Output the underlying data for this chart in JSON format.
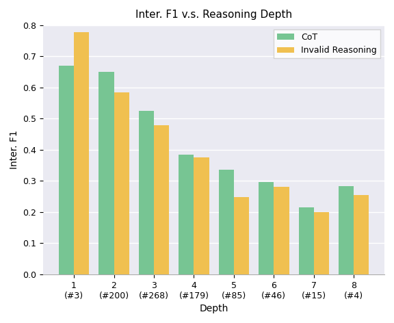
{
  "title": "Inter. F1 v.s. Reasoning Depth",
  "xlabel": "Depth",
  "ylabel": "Inter. F1",
  "categories": [
    "1\n(#3)",
    "2\n(#200)",
    "3\n(#268)",
    "4\n(#179)",
    "5\n(#85)",
    "6\n(#46)",
    "7\n(#15)",
    "8\n(#4)"
  ],
  "cot_values": [
    0.67,
    0.65,
    0.525,
    0.385,
    0.335,
    0.297,
    0.215,
    0.283
  ],
  "invalid_values": [
    0.778,
    0.585,
    0.48,
    0.375,
    0.248,
    0.28,
    0.2,
    0.255
  ],
  "cot_color": "#77C593",
  "invalid_color": "#F0C050",
  "legend_labels": [
    "CoT",
    "Invalid Reasoning"
  ],
  "ylim": [
    0.0,
    0.8
  ],
  "yticks": [
    0.0,
    0.1,
    0.2,
    0.3,
    0.4,
    0.5,
    0.6,
    0.7,
    0.8
  ],
  "bar_width": 0.38,
  "plot_bg_color": "#eaeaf2",
  "fig_bg_color": "#ffffff",
  "grid_color": "#ffffff",
  "title_fontsize": 11,
  "axis_label_fontsize": 10,
  "tick_fontsize": 9
}
